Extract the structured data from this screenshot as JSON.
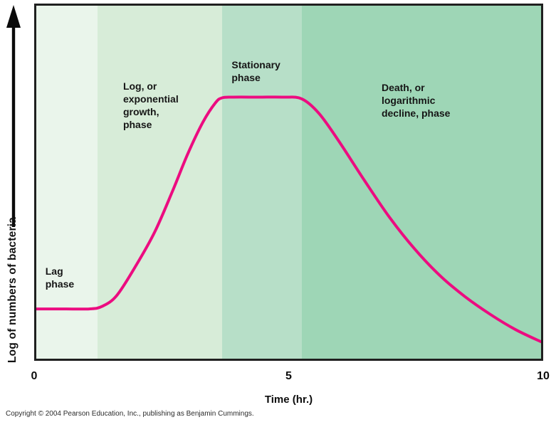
{
  "figure": {
    "y_axis_label": "Log of numbers of bacteria",
    "x_axis_label": "Time (hr.)",
    "copyright": "Copyright © 2004 Pearson Education, Inc., publishing as Benjamin Cummings."
  },
  "colors": {
    "curve": "#ec0c80",
    "plot_border": "#202020",
    "arrow": "#0a0a0a",
    "text": "#111111",
    "phase_bands": [
      "#eaf5eb",
      "#d7ecd8",
      "#b7dfc8",
      "#9ed6b6"
    ]
  },
  "chart_data": {
    "type": "line",
    "xlabel": "Time (hr.)",
    "ylabel": "Log of numbers of bacteria",
    "xlim": [
      0,
      10
    ],
    "ylim": [
      0,
      10
    ],
    "y_axis_style": "unlabeled relative log scale with upward arrow",
    "grid": false,
    "legend": false,
    "x_ticks": [
      {
        "t": 0,
        "label": "0"
      },
      {
        "t": 5,
        "label": "5"
      },
      {
        "t": 10,
        "label": "10"
      }
    ],
    "curve": {
      "name": "bacterial-population",
      "points": [
        [
          0,
          1.41
        ],
        [
          0.6,
          1.41
        ],
        [
          1.05,
          1.41
        ],
        [
          1.3,
          1.48
        ],
        [
          1.6,
          1.8
        ],
        [
          2.0,
          2.7
        ],
        [
          2.35,
          3.6
        ],
        [
          2.7,
          4.75
        ],
        [
          3.0,
          5.8
        ],
        [
          3.3,
          6.7
        ],
        [
          3.55,
          7.25
        ],
        [
          3.68,
          7.39
        ],
        [
          3.9,
          7.41
        ],
        [
          4.4,
          7.41
        ],
        [
          4.9,
          7.41
        ],
        [
          5.26,
          7.36
        ],
        [
          5.6,
          6.95
        ],
        [
          6.0,
          6.15
        ],
        [
          6.5,
          5.05
        ],
        [
          7.0,
          4.0
        ],
        [
          7.5,
          3.1
        ],
        [
          8.0,
          2.35
        ],
        [
          8.5,
          1.75
        ],
        [
          9.0,
          1.25
        ],
        [
          9.5,
          0.82
        ],
        [
          10,
          0.48
        ]
      ]
    },
    "phases": [
      {
        "name": "lag",
        "label_lines": [
          "Lag",
          "phase"
        ],
        "t_start": 0,
        "t_end": 1.22,
        "label_pos": {
          "t": 0.18,
          "v": 2.67
        }
      },
      {
        "name": "log",
        "label_lines": [
          "Log, or",
          "exponential",
          "growth,",
          "phase"
        ],
        "t_start": 1.22,
        "t_end": 3.68,
        "label_pos": {
          "t": 1.72,
          "v": 7.91
        }
      },
      {
        "name": "stationary",
        "label_lines": [
          "Stationary",
          "phase"
        ],
        "t_start": 3.68,
        "t_end": 5.26,
        "label_pos": {
          "t": 3.87,
          "v": 8.51
        }
      },
      {
        "name": "death",
        "label_lines": [
          "Death, or",
          "logarithmic",
          "decline, phase"
        ],
        "t_start": 5.26,
        "t_end": 10,
        "label_pos": {
          "t": 6.84,
          "v": 7.87
        }
      }
    ]
  }
}
